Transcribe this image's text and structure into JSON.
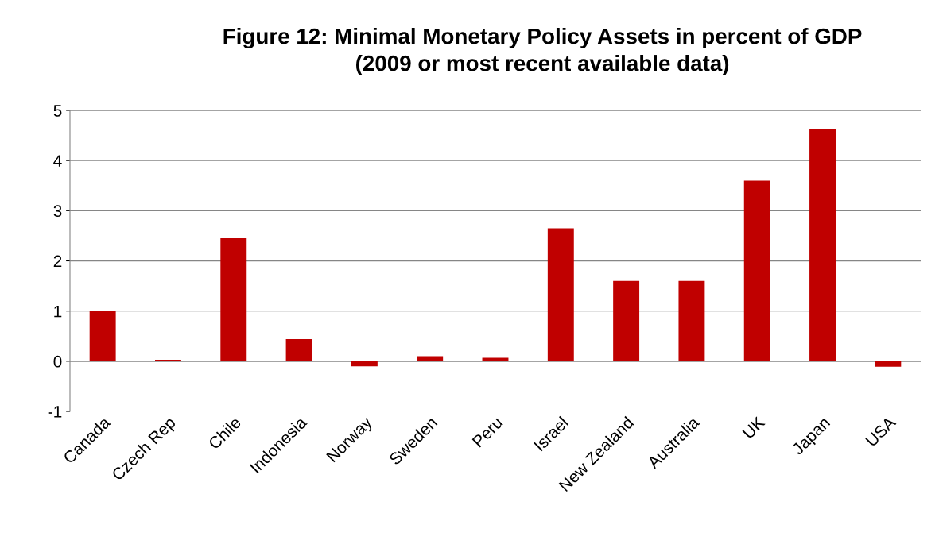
{
  "chart_data": {
    "type": "bar",
    "title": "Figure 12: Minimal Monetary Policy Assets in percent of GDP\n(2009 or most recent available data)",
    "categories": [
      "Canada",
      "Czech Rep",
      "Chile",
      "Indonesia",
      "Norway",
      "Sweden",
      "Peru",
      "Israel",
      "New Zealand",
      "Australia",
      "UK",
      "Japan",
      "USA"
    ],
    "values": [
      1.0,
      0.03,
      2.45,
      0.44,
      -0.1,
      0.1,
      0.07,
      2.65,
      1.6,
      1.6,
      3.6,
      4.62,
      -0.11
    ],
    "color": "#c00000",
    "ylim": [
      -1,
      5
    ],
    "yticks": [
      -1,
      0,
      1,
      2,
      3,
      4,
      5
    ],
    "grid": "y",
    "legend": false
  }
}
